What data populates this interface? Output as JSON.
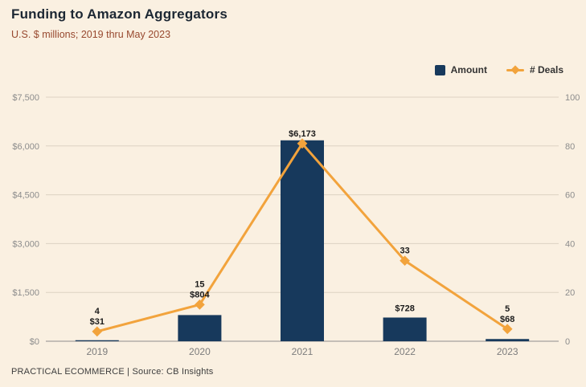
{
  "header": {
    "title": "Funding to Amazon Aggregators",
    "subtitle": "U.S. $ millions; 2019 thru May 2023"
  },
  "footer": {
    "source": "PRACTICAL ECOMMERCE | Source: CB Insights"
  },
  "colors": {
    "background": "#faf0e1",
    "bar": "#17395c",
    "line": "#f2a33c",
    "grid": "#ddd2c2",
    "axis_line": "#8d8d8d"
  },
  "chart_data": {
    "type": "bar",
    "subtype": "bar+line-combo",
    "title": "Funding to Amazon Aggregators",
    "subtitle": "U.S. $ millions; 2019 thru May 2023",
    "categories": [
      "2019",
      "2020",
      "2021",
      "2022",
      "2023"
    ],
    "series": [
      {
        "name": "Amount",
        "type": "bar",
        "axis": "left",
        "color": "#17395c",
        "values": [
          31,
          804,
          6173,
          728,
          68
        ],
        "labels": [
          "$31",
          "$804",
          "$6,173",
          "$728",
          "$68"
        ]
      },
      {
        "name": "# Deals",
        "type": "line",
        "axis": "right",
        "color": "#f2a33c",
        "values": [
          4,
          15,
          81,
          33,
          5
        ],
        "labels": [
          "4",
          "15",
          "",
          "33",
          "5"
        ]
      }
    ],
    "left_axis": {
      "min": 0,
      "max": 7500,
      "ticks": [
        "$0",
        "$1,500",
        "$3,000",
        "$4,500",
        "$6,000",
        "$7,500"
      ]
    },
    "right_axis": {
      "min": 0,
      "max": 100,
      "ticks": [
        "0",
        "20",
        "40",
        "60",
        "80",
        "100"
      ]
    },
    "grid": true,
    "legend_position": "top-right"
  }
}
